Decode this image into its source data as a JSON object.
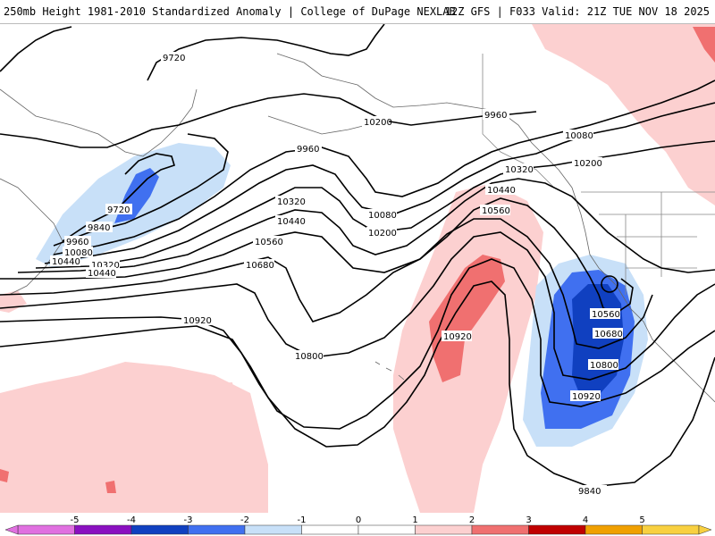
{
  "header": {
    "title_left": "250mb Height 1981-2010 Standardized Anomaly | College of DuPage NEXLAB",
    "title_right": "12Z GFS | F033 Valid: 21Z TUE NOV 18 2025"
  },
  "colors": {
    "neg5": "#e070e0",
    "neg4": "#8a10c0",
    "neg3": "#1040c0",
    "neg2": "#4070f0",
    "neg1": "#c8e0f8",
    "zero": "#ffffff",
    "pos1": "#fcd0d0",
    "pos2": "#f07070",
    "pos3": "#c00000",
    "pos4": "#f0a000",
    "pos5": "#f8d040",
    "land": "#ffffff",
    "contour": "#000000",
    "border": "#555555"
  },
  "colorbar": {
    "ticks": [
      "-5",
      "-4",
      "-3",
      "-2",
      "-1",
      "0",
      "1",
      "2",
      "3",
      "4",
      "5"
    ],
    "values": [
      -5,
      -4,
      -3,
      -2,
      -1,
      0,
      1,
      2,
      3,
      4,
      5
    ]
  },
  "contour_labels": [
    {
      "id": "c9720a",
      "text": "9720"
    },
    {
      "id": "c9840a",
      "text": "9840"
    },
    {
      "id": "c9960a",
      "text": "9960"
    },
    {
      "id": "c9960b",
      "text": "9960"
    },
    {
      "id": "c10080a",
      "text": "10080"
    },
    {
      "id": "c10080b",
      "text": "10080"
    },
    {
      "id": "c10200a",
      "text": "10200"
    },
    {
      "id": "c10200b",
      "text": "10200"
    },
    {
      "id": "c10320a",
      "text": "10320"
    },
    {
      "id": "c10320b",
      "text": "10320"
    },
    {
      "id": "c10440a",
      "text": "10440"
    },
    {
      "id": "c10440b",
      "text": "10440"
    },
    {
      "id": "c10560a",
      "text": "10560"
    },
    {
      "id": "c10560b",
      "text": "10560"
    },
    {
      "id": "c10680a",
      "text": "10680"
    },
    {
      "id": "c10800a",
      "text": "10800"
    },
    {
      "id": "c10920a",
      "text": "10920"
    },
    {
      "id": "c10920b",
      "text": "10920"
    },
    {
      "id": "c9720b",
      "text": "9720"
    },
    {
      "id": "c9840b",
      "text": "9840"
    },
    {
      "id": "c9960c",
      "text": "9960"
    },
    {
      "id": "c10080c",
      "text": "10080"
    },
    {
      "id": "c10200c",
      "text": "10200"
    },
    {
      "id": "c10320c",
      "text": "10320"
    },
    {
      "id": "c10440c",
      "text": "10440"
    },
    {
      "id": "c10440d",
      "text": "10440"
    },
    {
      "id": "c10560c",
      "text": "10560"
    },
    {
      "id": "c10680b",
      "text": "10680"
    },
    {
      "id": "c10800b",
      "text": "10800"
    },
    {
      "id": "c10920c",
      "text": "10920"
    }
  ]
}
